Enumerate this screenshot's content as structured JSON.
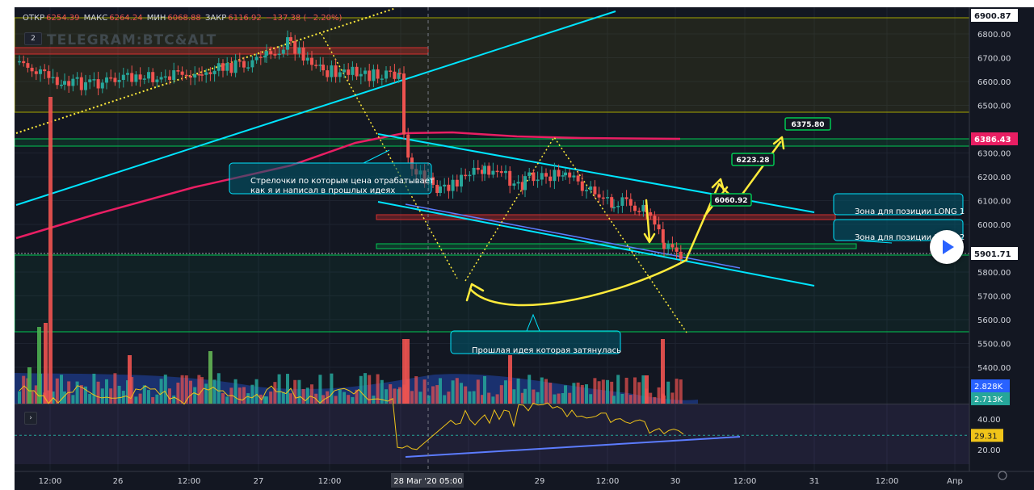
{
  "ohlc": {
    "open_label": "ОТКР",
    "open": "6254.39",
    "high_label": "МАКС",
    "high": "6264.24",
    "low_label": "МИН",
    "low": "6068.88",
    "close_label": "ЗАКР",
    "close": "6116.92",
    "change": "−137.38 (−2.20%)"
  },
  "toolbar": {
    "badge_main": "2",
    "badge_indicator": "›"
  },
  "watermark": "TELEGRAM:BTC&ALT",
  "colors": {
    "background": "#131722",
    "up": "#26a69a",
    "down": "#ef5350",
    "cyan": "#00e5ff",
    "yellow": "#ffeb3b",
    "pink": "#e91e63",
    "green_zone": "#00c853",
    "red_zone": "#d32f2f",
    "olive_zone": "#a5a500"
  },
  "chart_data": {
    "type": "candlestick",
    "symbol_watermark": "TELEGRAM:BTC&ALT",
    "y_ticks": [
      6800,
      6700,
      6600,
      6500,
      6300,
      6200,
      6100,
      6000,
      5800,
      5700,
      5600,
      5500,
      5400
    ],
    "y_tick_labels": [
      "6800.00",
      "6700.00",
      "6600.00",
      "6500.00",
      "6300.00",
      "6200.00",
      "6100.00",
      "6000.00",
      "5800.00",
      "5700.00",
      "5600.00",
      "5500.00",
      "5400.00"
    ],
    "x_tick_labels": [
      "12:00",
      "26",
      "12:00",
      "27",
      "12:00",
      "28 Mar '20  05:00",
      "29",
      "12:00",
      "30",
      "12:00",
      "31",
      "12:00",
      "Апр"
    ],
    "price_tags": [
      {
        "value": 6900.87,
        "label": "6900.87",
        "style": "white"
      },
      {
        "value": 6386.43,
        "label": "6386.43",
        "style": "pink"
      },
      {
        "value": 5901.71,
        "label": "5901.71",
        "style": "white"
      }
    ],
    "volume_tags": [
      {
        "label": "2.828K",
        "style": "blue"
      },
      {
        "label": "2.713K",
        "style": "green"
      }
    ],
    "indicator_ticks": [
      40,
      20
    ],
    "indicator_tick_labels": [
      "40.00",
      "20.00"
    ],
    "indicator_value": {
      "value": 29.31,
      "label": "29.31"
    },
    "targets": [
      {
        "label": "6060.92"
      },
      {
        "label": "6223.28"
      },
      {
        "label": "6375.80"
      }
    ],
    "annotations": [
      {
        "text_line1": "Стрелочки по которым цена отрабатывает",
        "text_line2": "как я и написал в прошлых идеях"
      },
      {
        "text": "Прошлая идея которая затянулась"
      },
      {
        "text": "Зона для позиции LONG 1"
      },
      {
        "text": "Зона для позиции LONG 2"
      }
    ]
  }
}
